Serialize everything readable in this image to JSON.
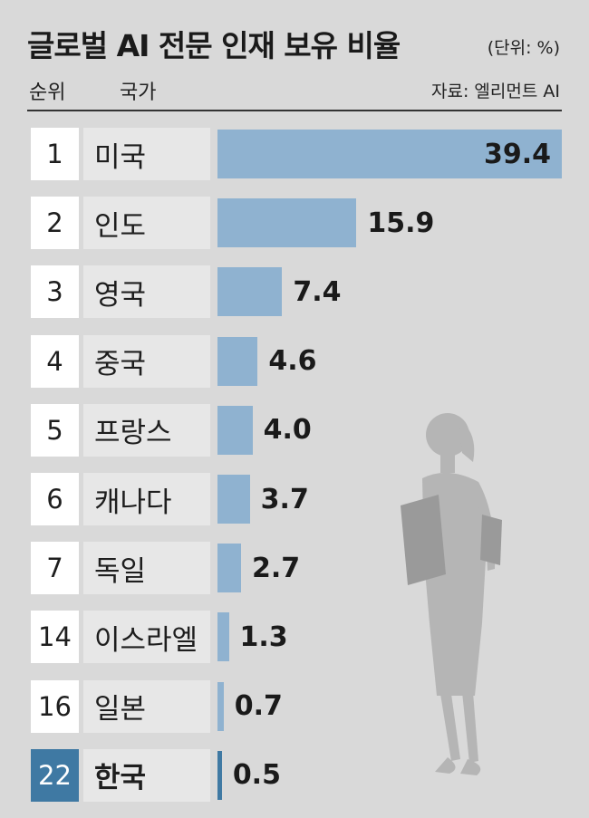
{
  "title": "글로벌 AI 전문 인재 보유 비율",
  "unit": "(단위: %)",
  "header_rank": "순위",
  "header_country": "국가",
  "source": "자료: 엘리먼트 AI",
  "colors": {
    "bar": "#8fb2d0",
    "highlight": "#3f79a3",
    "background": "#d9d9d9"
  },
  "chart_data": {
    "type": "bar",
    "orientation": "horizontal",
    "ranks": [
      "1",
      "2",
      "3",
      "4",
      "5",
      "6",
      "7",
      "14",
      "16",
      "22"
    ],
    "categories": [
      "미국",
      "인도",
      "영국",
      "중국",
      "프랑스",
      "캐나다",
      "독일",
      "이스라엘",
      "일본",
      "한국"
    ],
    "values": [
      39.4,
      15.9,
      7.4,
      4.6,
      4.0,
      3.7,
      2.7,
      1.3,
      0.7,
      0.5
    ],
    "value_labels": [
      "39.4",
      "15.9",
      "7.4",
      "4.6",
      "4.0",
      "3.7",
      "2.7",
      "1.3",
      "0.7",
      "0.5"
    ],
    "highlight": "한국",
    "xlim": [
      0,
      39.4
    ],
    "grid": false
  }
}
